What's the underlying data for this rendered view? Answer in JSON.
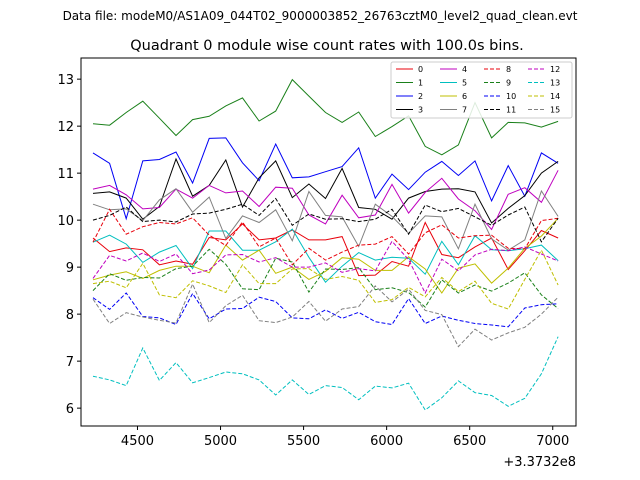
{
  "header": "Data file: modeM0/AS1A09_044T02_9000003852_26763cztM0_level2_quad_clean.evt",
  "chart_data": {
    "type": "line",
    "title": "Quadrant 0 module wise count rates with 100.0s bins.",
    "xlabel": "",
    "ylabel": "",
    "x_offset_label": "+3.3732e8",
    "xlim": [
      4160,
      7140
    ],
    "ylim": [
      5.62,
      13.45
    ],
    "xticks": [
      4500,
      5000,
      5500,
      6000,
      6500,
      7000
    ],
    "yticks": [
      6,
      7,
      8,
      9,
      10,
      11,
      12,
      13
    ],
    "grid": false,
    "legend_position": "top-right",
    "x": [
      4232,
      4332,
      4432,
      4532,
      4632,
      4732,
      4832,
      4932,
      5032,
      5132,
      5232,
      5332,
      5432,
      5532,
      5632,
      5732,
      5832,
      5932,
      6032,
      6132,
      6232,
      6332,
      6432,
      6532,
      6632,
      6732,
      6832,
      6932,
      7032
    ],
    "series": [
      {
        "name": "0",
        "color": "#e8000b",
        "dash": false,
        "values": [
          9.62,
          9.33,
          9.41,
          9.37,
          9.05,
          9.13,
          9.06,
          9.63,
          9.58,
          9.92,
          9.58,
          9.62,
          9.79,
          9.58,
          9.58,
          9.65,
          8.82,
          8.83,
          9.12,
          9.02,
          9.95,
          9.27,
          9.2,
          9.43,
          9.62,
          8.95,
          9.35,
          9.78,
          9.62
        ]
      },
      {
        "name": "1",
        "color": "#1a801a",
        "dash": false,
        "values": [
          12.05,
          12.02,
          12.29,
          12.53,
          12.17,
          11.8,
          12.14,
          12.21,
          12.43,
          12.6,
          12.11,
          12.32,
          12.99,
          12.64,
          12.29,
          12.08,
          12.3,
          11.78,
          11.99,
          12.22,
          11.57,
          11.39,
          11.6,
          12.5,
          11.75,
          12.08,
          12.07,
          11.98,
          12.1
        ]
      },
      {
        "name": "2",
        "color": "#0000f5",
        "dash": false,
        "values": [
          11.43,
          11.21,
          10.03,
          11.26,
          11.29,
          11.45,
          10.79,
          11.74,
          11.75,
          11.22,
          10.84,
          11.62,
          10.9,
          10.92,
          11.03,
          11.14,
          11.54,
          10.47,
          10.98,
          10.65,
          11.02,
          11.25,
          10.95,
          11.26,
          10.41,
          11.16,
          10.51,
          11.43,
          11.21
        ]
      },
      {
        "name": "3",
        "color": "#000000",
        "dash": false,
        "values": [
          10.57,
          10.6,
          10.47,
          10.02,
          10.29,
          11.3,
          10.51,
          10.74,
          11.28,
          10.28,
          10.9,
          11.26,
          10.48,
          10.77,
          10.46,
          11.1,
          10.27,
          10.23,
          10.02,
          10.47,
          10.61,
          10.66,
          10.67,
          10.6,
          9.94,
          10.25,
          10.52,
          11.0,
          11.25
        ]
      },
      {
        "name": "4",
        "color": "#bf00bf",
        "dash": false,
        "values": [
          10.66,
          10.74,
          10.54,
          10.24,
          10.27,
          10.66,
          10.47,
          10.74,
          10.58,
          10.62,
          10.29,
          10.7,
          10.68,
          10.11,
          9.92,
          10.53,
          10.05,
          10.11,
          10.76,
          10.15,
          10.59,
          10.89,
          10.45,
          10.2,
          9.8,
          10.55,
          10.69,
          10.38,
          11.06
        ]
      },
      {
        "name": "5",
        "color": "#00bfbf",
        "dash": false,
        "values": [
          9.53,
          9.68,
          9.49,
          9.1,
          9.32,
          9.46,
          8.97,
          9.77,
          9.77,
          9.36,
          9.36,
          9.54,
          9.81,
          9.21,
          8.68,
          9.02,
          9.31,
          9.15,
          9.21,
          9.19,
          8.85,
          9.55,
          9.05,
          9.67,
          9.37,
          9.35,
          9.39,
          9.47,
          9.14
        ]
      },
      {
        "name": "6",
        "color": "#bfbf00",
        "dash": false,
        "values": [
          8.73,
          8.83,
          8.9,
          8.76,
          8.93,
          9.02,
          9.02,
          8.88,
          9.47,
          9.15,
          9.36,
          8.87,
          9.0,
          8.74,
          8.91,
          9.2,
          9.17,
          8.93,
          8.93,
          9.22,
          8.96,
          8.45,
          8.98,
          9.07,
          8.66,
          8.98,
          9.4,
          9.66,
          10.04
        ]
      },
      {
        "name": "7",
        "color": "#808080",
        "dash": false,
        "values": [
          10.34,
          10.22,
          10.24,
          9.99,
          10.43,
          10.67,
          10.17,
          10.49,
          9.61,
          10.09,
          9.95,
          10.22,
          9.56,
          10.61,
          10.1,
          10.07,
          9.44,
          10.34,
          10.08,
          9.72,
          10.09,
          10.07,
          9.39,
          10.34,
          9.6,
          9.36,
          9.58,
          10.62,
          10.08
        ]
      },
      {
        "name": "8",
        "color": "#e8000b",
        "dash": true,
        "values": [
          9.53,
          10.23,
          9.7,
          9.86,
          9.95,
          9.92,
          10.05,
          9.68,
          9.46,
          9.96,
          9.43,
          9.62,
          9.05,
          9.4,
          9.15,
          9.32,
          9.47,
          9.49,
          9.65,
          9.28,
          9.73,
          9.9,
          9.62,
          9.67,
          9.68,
          9.4,
          9.39,
          9.99,
          10.04
        ]
      },
      {
        "name": "9",
        "color": "#1a801a",
        "dash": true,
        "values": [
          8.5,
          8.86,
          8.72,
          8.78,
          8.77,
          8.97,
          9.02,
          9.38,
          9.06,
          8.54,
          8.52,
          9.19,
          9.11,
          8.47,
          8.96,
          8.95,
          8.99,
          8.52,
          8.56,
          8.46,
          8.15,
          8.73,
          8.45,
          8.62,
          8.49,
          8.66,
          8.88,
          8.41,
          8.12
        ]
      },
      {
        "name": "10",
        "color": "#0000f5",
        "dash": true,
        "values": [
          8.35,
          8.1,
          8.45,
          7.95,
          7.92,
          7.78,
          8.44,
          7.9,
          8.11,
          8.12,
          8.36,
          8.27,
          7.92,
          7.9,
          8.09,
          7.91,
          8.04,
          7.84,
          7.78,
          8.33,
          7.8,
          7.96,
          7.87,
          7.8,
          7.77,
          7.73,
          8.13,
          8.2,
          8.22
        ]
      },
      {
        "name": "11",
        "color": "#000000",
        "dash": true,
        "values": [
          10.0,
          10.1,
          10.28,
          9.97,
          10.0,
          9.96,
          10.13,
          10.15,
          10.23,
          10.34,
          10.1,
          10.46,
          9.89,
          10.13,
          10.02,
          10.03,
          9.97,
          10.02,
          10.23,
          9.7,
          10.32,
          10.18,
          10.25,
          10.07,
          9.89,
          10.11,
          10.28,
          9.54,
          10.04
        ]
      },
      {
        "name": "12",
        "color": "#bf00bf",
        "dash": true,
        "values": [
          8.76,
          9.25,
          9.13,
          9.3,
          9.12,
          9.28,
          8.86,
          8.94,
          9.26,
          9.27,
          9.11,
          9.2,
          9.0,
          9.0,
          9.09,
          8.89,
          8.97,
          8.92,
          9.55,
          9.16,
          8.45,
          9.17,
          8.92,
          9.26,
          9.38,
          9.35,
          9.43,
          9.28,
          9.13
        ]
      },
      {
        "name": "13",
        "color": "#00bfbf",
        "dash": true,
        "values": [
          6.68,
          6.6,
          6.48,
          7.28,
          6.59,
          6.97,
          6.54,
          6.65,
          6.77,
          6.73,
          6.6,
          6.28,
          6.6,
          6.29,
          6.48,
          6.44,
          6.18,
          6.47,
          6.43,
          6.53,
          5.96,
          6.22,
          6.58,
          6.33,
          6.27,
          6.04,
          6.21,
          6.73,
          7.52
        ]
      },
      {
        "name": "14",
        "color": "#bfbf00",
        "dash": true,
        "values": [
          8.65,
          8.7,
          8.56,
          9.08,
          8.41,
          8.35,
          8.71,
          8.6,
          8.46,
          9.05,
          8.65,
          8.65,
          8.96,
          8.97,
          8.74,
          8.8,
          8.72,
          8.25,
          8.31,
          8.57,
          8.37,
          8.78,
          8.48,
          8.7,
          8.23,
          8.11,
          8.74,
          9.36,
          8.62
        ]
      },
      {
        "name": "15",
        "color": "#808080",
        "dash": true,
        "values": [
          8.32,
          7.8,
          8.03,
          7.94,
          7.87,
          7.81,
          8.64,
          7.82,
          8.18,
          8.4,
          7.86,
          7.82,
          7.94,
          8.27,
          7.85,
          8.11,
          8.16,
          8.6,
          8.26,
          8.53,
          8.08,
          7.99,
          7.31,
          7.68,
          7.45,
          7.6,
          7.72,
          8.0,
          8.36
        ]
      }
    ]
  }
}
